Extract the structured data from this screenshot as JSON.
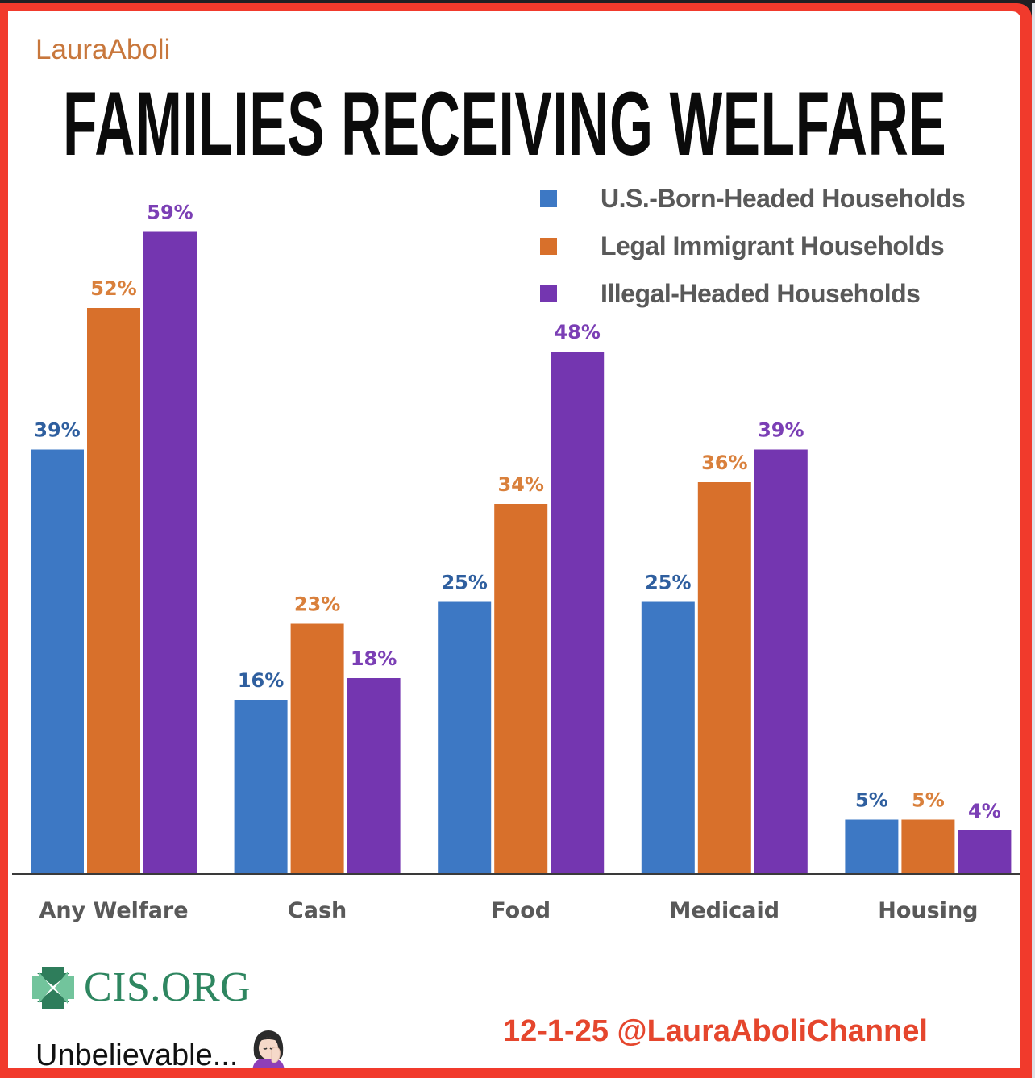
{
  "header": {
    "brand": "LauraAboli",
    "title": "FAMILIES RECEIVING WELFARE"
  },
  "colors": {
    "frame": "#f13a2c",
    "us_born": "#3d78c4",
    "legal": "#d8702b",
    "illegal": "#7436b0",
    "us_born_label": "#2f5f9f",
    "legal_label": "#d9803c",
    "illegal_label": "#7b3fb5"
  },
  "chart_data": {
    "type": "bar",
    "title": "FAMILIES RECEIVING WELFARE",
    "xlabel": "",
    "ylabel": "",
    "ylim": [
      0,
      60
    ],
    "grid": false,
    "legend_position": "top-right",
    "categories": [
      "Any Welfare",
      "Cash",
      "Food",
      "Medicaid",
      "Housing"
    ],
    "series": [
      {
        "name": "U.S.-Born-Headed Households",
        "values": [
          39,
          16,
          25,
          25,
          5
        ],
        "labels": [
          "39%",
          "16%",
          "25%",
          "25%",
          "5%"
        ]
      },
      {
        "name": "Legal Immigrant Households",
        "values": [
          52,
          23,
          34,
          36,
          5
        ],
        "labels": [
          "52%",
          "23%",
          "34%",
          "36%",
          "5%"
        ]
      },
      {
        "name": "Illegal-Headed Households",
        "values": [
          59,
          18,
          48,
          39,
          4
        ],
        "labels": [
          "59%",
          "18%",
          "48%",
          "39%",
          "4%"
        ]
      }
    ]
  },
  "footer": {
    "source_logo_text": "CIS.ORG",
    "caption": "Unbelievable...",
    "emoji": "🤦‍♀️",
    "credit": "12-1-25 @LauraAboliChannel"
  }
}
